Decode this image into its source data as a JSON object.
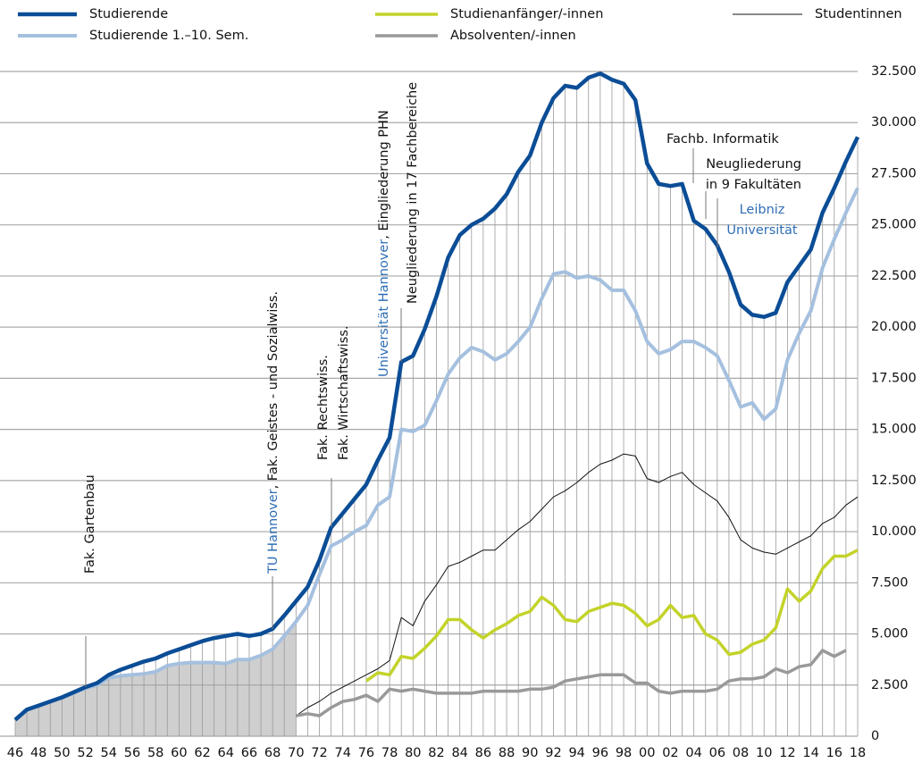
{
  "chart_data": {
    "type": "line",
    "categories": [
      "46",
      null,
      "48",
      null,
      "50",
      null,
      "52",
      null,
      "54",
      null,
      "56",
      null,
      "58",
      null,
      "60",
      null,
      "62",
      null,
      "64",
      null,
      "66",
      null,
      "68",
      null,
      "70",
      null,
      "72",
      null,
      "74",
      null,
      "76",
      null,
      "78",
      null,
      "80",
      null,
      "82",
      null,
      "84",
      null,
      "86",
      null,
      "88",
      null,
      "90",
      null,
      "92",
      null,
      "94",
      null,
      "96",
      null,
      "98",
      null,
      "00",
      null,
      "02",
      null,
      "04",
      null,
      "06",
      null,
      "08",
      null,
      "10",
      null,
      "12",
      null,
      "14",
      null,
      "16",
      null,
      "18"
    ],
    "series": [
      {
        "name": "Studierende",
        "color": "#0b4d96",
        "values": [
          800,
          1300,
          1500,
          1700,
          1900,
          2150,
          2400,
          2600,
          3000,
          3250,
          3450,
          3650,
          3800,
          4050,
          4250,
          4450,
          4650,
          4800,
          4900,
          5000,
          4900,
          5000,
          5250,
          5900,
          6600,
          7300,
          8600,
          10200,
          10900,
          11600,
          12300,
          13500,
          14600,
          18300,
          18600,
          19900,
          21500,
          23400,
          24500,
          25000,
          25300,
          25800,
          26500,
          27600,
          28400,
          30000,
          31200,
          31800,
          31700,
          32200,
          32400,
          32100,
          31900,
          31100,
          28000,
          27000,
          26900,
          27000,
          25200,
          24800,
          24000,
          22700,
          21100,
          20600,
          20500,
          20700,
          22200,
          23000,
          23800,
          25600,
          26800,
          28100,
          29300
        ]
      },
      {
        "name": "Studierende 1.–10. Sem.",
        "color": "#a5c0df",
        "values": [
          800,
          1300,
          1500,
          1700,
          1900,
          2100,
          2350,
          2500,
          2850,
          2950,
          3000,
          3050,
          3150,
          3450,
          3550,
          3600,
          3600,
          3600,
          3550,
          3750,
          3750,
          3950,
          4250,
          4900,
          5600,
          6400,
          7900,
          9300,
          9600,
          10000,
          10300,
          11300,
          11700,
          15000,
          14900,
          15200,
          16400,
          17700,
          18500,
          19000,
          18800,
          18400,
          18700,
          19300,
          20000,
          21400,
          22600,
          22700,
          22400,
          22500,
          22300,
          21800,
          21800,
          20800,
          19300,
          18700,
          18900,
          19300,
          19300,
          19000,
          18600,
          17400,
          16100,
          16300,
          15500,
          16000,
          18400,
          19700,
          20800,
          22900,
          24300,
          25600,
          26800
        ]
      },
      {
        "name": "Studienanfänger/-innen",
        "color": "#c3d32a",
        "values": [
          null,
          null,
          null,
          null,
          null,
          null,
          null,
          null,
          null,
          null,
          null,
          null,
          null,
          null,
          null,
          null,
          null,
          null,
          null,
          null,
          null,
          null,
          null,
          null,
          null,
          null,
          null,
          null,
          null,
          null,
          2700,
          3100,
          3000,
          3900,
          3800,
          4300,
          4900,
          5700,
          5700,
          5200,
          4800,
          5200,
          5500,
          5900,
          6100,
          6800,
          6400,
          5700,
          5600,
          6100,
          6300,
          6500,
          6400,
          6000,
          5400,
          5700,
          6400,
          5800,
          5900,
          5000,
          4700,
          4000,
          4100,
          4500,
          4700,
          5300,
          7200,
          6600,
          7100,
          8200,
          8800,
          8800,
          9100
        ]
      },
      {
        "name": "Absolventen/-innen",
        "color": "#999999",
        "values": [
          null,
          null,
          null,
          null,
          null,
          null,
          null,
          null,
          null,
          null,
          null,
          null,
          null,
          null,
          null,
          null,
          null,
          null,
          null,
          null,
          null,
          null,
          null,
          null,
          1000,
          1100,
          1000,
          1400,
          1700,
          1800,
          2000,
          1700,
          2300,
          2200,
          2300,
          2200,
          2100,
          2100,
          2100,
          2100,
          2200,
          2200,
          2200,
          2200,
          2300,
          2300,
          2400,
          2700,
          2800,
          2900,
          3000,
          3000,
          3000,
          2600,
          2600,
          2200,
          2100,
          2200,
          2200,
          2200,
          2300,
          2700,
          2800,
          2800,
          2900,
          3300,
          3100,
          3400,
          3500,
          4200,
          3900,
          4200,
          null
        ]
      },
      {
        "name": "Studentinnen",
        "color": "#111111",
        "values": [
          null,
          null,
          null,
          null,
          null,
          null,
          null,
          null,
          null,
          null,
          null,
          null,
          null,
          null,
          null,
          null,
          null,
          null,
          null,
          null,
          null,
          null,
          null,
          null,
          1000,
          1400,
          1700,
          2100,
          2400,
          2700,
          3000,
          3300,
          3700,
          5800,
          5400,
          6600,
          7400,
          8300,
          8500,
          8800,
          9100,
          9100,
          9600,
          10100,
          10500,
          11100,
          11700,
          12000,
          12400,
          12900,
          13300,
          13500,
          13800,
          13700,
          12600,
          12400,
          12700,
          12900,
          12300,
          11900,
          11500,
          10700,
          9600,
          9200,
          9000,
          8900,
          9200,
          9500,
          9800,
          10400,
          10700,
          11300,
          11700
        ]
      }
    ],
    "ylim": [
      0,
      32500
    ],
    "yticks": [
      0,
      {
        "value": 2500,
        "label": "2.500"
      },
      {
        "value": 5000,
        "label": "5.000"
      },
      {
        "value": 7500,
        "label": "7.500"
      },
      {
        "value": 10000,
        "label": "10.000"
      },
      {
        "value": 12500,
        "label": "12.500"
      },
      {
        "value": 15000,
        "label": "15.000"
      },
      {
        "value": 17500,
        "label": "17.500"
      },
      {
        "value": 20000,
        "label": "20.000"
      },
      {
        "value": 22500,
        "label": "22.500"
      },
      {
        "value": 25000,
        "label": "25.000"
      },
      {
        "value": 27500,
        "label": "27.500"
      },
      {
        "value": 30000,
        "label": "30.000"
      },
      {
        "value": 32500,
        "label": "32.500"
      }
    ],
    "grid": true,
    "annotations": [
      [
        "Fak. Gartenbau"
      ],
      [
        "TU Hannover",
        ", Fak. Geistes - und Sozialwiss."
      ],
      [
        "Fak. Rechtswiss.",
        "Fak. Wirtschaftswiss."
      ],
      [
        "Universität Hannover",
        ", Eingliederung PHN"
      ],
      [
        "Neugliederung in 17 Fachbereiche"
      ],
      [
        "Fachb. Informatik"
      ],
      [
        "Neugliederung",
        "in 9 Fakultäten"
      ],
      [
        "Leibniz",
        "Universität"
      ]
    ]
  }
}
